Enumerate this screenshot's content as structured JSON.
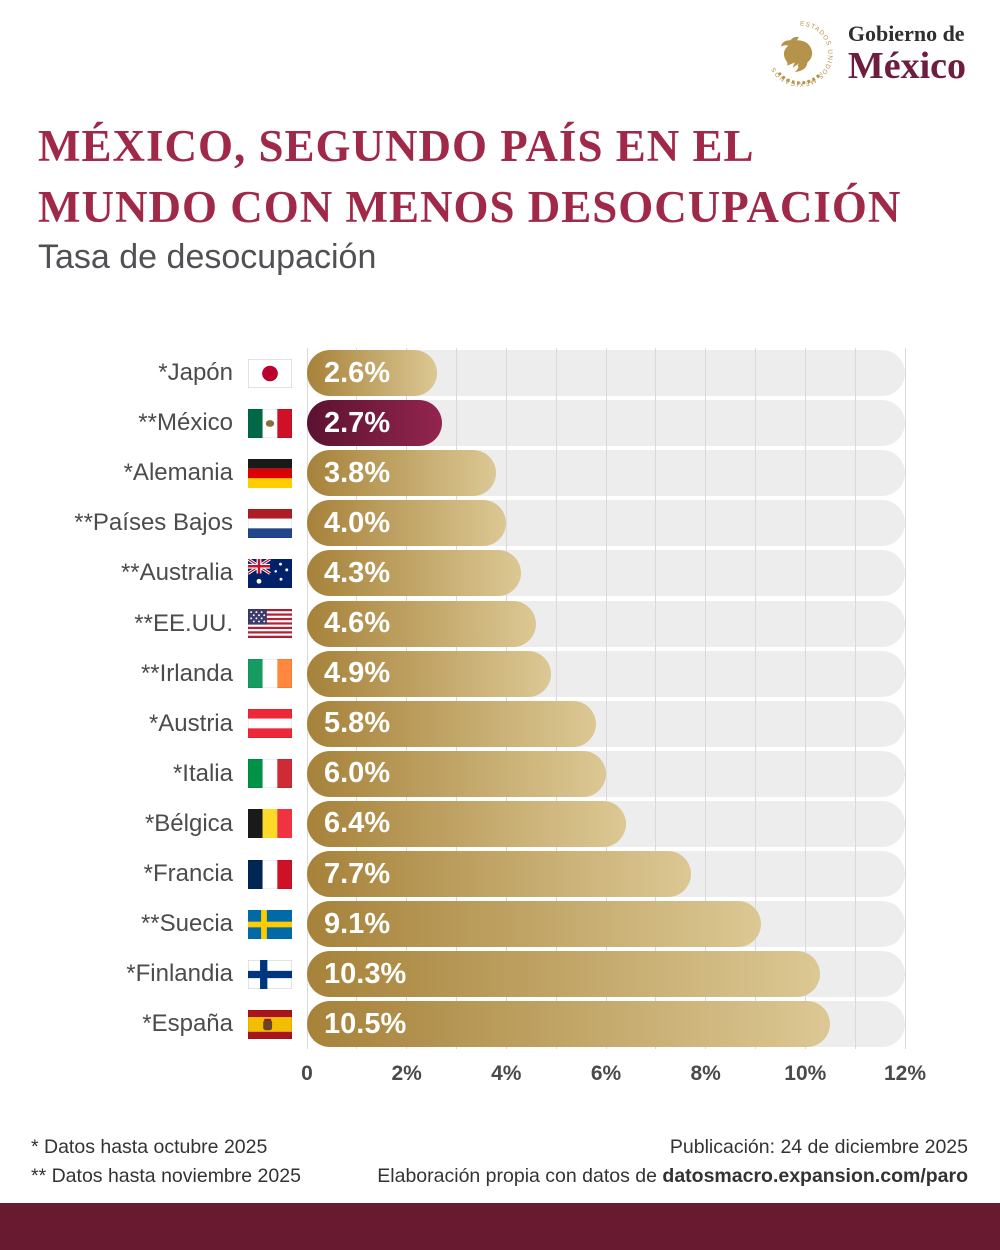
{
  "header": {
    "wordmark_line1": "Gobierno de",
    "wordmark_line2": "México",
    "seal_ring_text": "ESTADOS UNIDOS MEXICANOS"
  },
  "title": {
    "line1": "MÉXICO, SEGUNDO PAÍS EN EL",
    "line2": "MUNDO CON MENOS DESOCUPACIÓN",
    "subtitle": "Tasa de desocupación"
  },
  "chart_data": {
    "type": "bar",
    "orientation": "horizontal",
    "title": "Tasa de desocupación",
    "xlabel": "",
    "ylabel": "",
    "xlim": [
      0,
      12
    ],
    "grid": true,
    "grid_step_percent": 1,
    "x_tick_values": [
      0,
      2,
      4,
      6,
      8,
      10,
      12
    ],
    "x_tick_labels": [
      "0",
      "2%",
      "4%",
      "6%",
      "8%",
      "10%",
      "12%"
    ],
    "categories": [
      "*Japón",
      "**México",
      "*Alemania",
      "**Países Bajos",
      "**Australia",
      "**EE.UU.",
      "**Irlanda",
      "*Austria",
      "*Italia",
      "*Bélgica",
      "*Francia",
      "**Suecia",
      "*Finlandia",
      "*España"
    ],
    "values": [
      2.6,
      2.7,
      3.8,
      4.0,
      4.3,
      4.6,
      4.9,
      5.8,
      6.0,
      6.4,
      7.7,
      9.1,
      10.3,
      10.5
    ],
    "value_labels": [
      "2.6%",
      "2.7%",
      "3.8%",
      "4.0%",
      "4.3%",
      "4.6%",
      "4.9%",
      "5.8%",
      "6.0%",
      "6.4%",
      "7.7%",
      "9.1%",
      "10.3%",
      "10.5%"
    ],
    "flags": [
      "jp",
      "mx",
      "de",
      "nl",
      "au",
      "us",
      "ie",
      "at",
      "it",
      "be",
      "fr",
      "se",
      "fi",
      "es"
    ],
    "highlight_index": 1,
    "highlight_country": "**México",
    "colors": {
      "bar_gold_start": "#a6823a",
      "bar_gold_end": "#dcc894",
      "bar_highlight_start": "#5b1230",
      "bar_highlight_end": "#93254f",
      "track": "#ededee",
      "grid": "#d9d9d9",
      "title": "#a02849",
      "bottom_bar": "#681a31"
    }
  },
  "footer": {
    "notes": [
      "* Datos hasta octubre 2025",
      "** Datos hasta noviembre 2025"
    ],
    "publication": "Publicación: 24 de diciembre 2025",
    "source_prefix": "Elaboración propia con datos de ",
    "source_url": "datosmacro.expansion.com/paro"
  }
}
